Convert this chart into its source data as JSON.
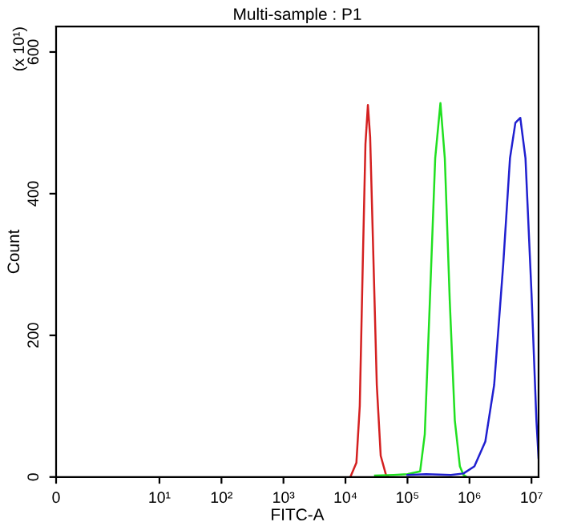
{
  "chart_data": {
    "type": "line",
    "title": "Multi-sample : P1",
    "xlabel": "FITC-A",
    "ylabel": "Count",
    "annotations": [
      "(x 10¹)"
    ],
    "log": "x",
    "grid": false,
    "marker": "none",
    "line_style": "solid",
    "xlim": [
      0,
      13000000
    ],
    "xticks": [
      0,
      {
        "value": 10,
        "label": "10¹"
      },
      {
        "value": 100,
        "label": "10²"
      },
      {
        "value": 1000,
        "label": "10³"
      },
      {
        "value": 10000,
        "label": "10⁴"
      },
      {
        "value": 100000,
        "label": "10⁵"
      },
      {
        "value": 1000000,
        "label": "10⁶"
      },
      {
        "value": 10000000,
        "label": "10⁷"
      }
    ],
    "ylim": [
      0,
      636
    ],
    "yticks": [
      0,
      200,
      400,
      600
    ],
    "series": [
      {
        "color": "#d42020",
        "x": [
          12000,
          15000,
          17000,
          19000,
          21000,
          23000,
          25000,
          28000,
          32000,
          37000,
          45000,
          50000
        ],
        "values": [
          0,
          20,
          100,
          300,
          470,
          525,
          480,
          320,
          130,
          30,
          3,
          0
        ]
      },
      {
        "color": "#20e020",
        "x": [
          30000,
          60000,
          100000,
          160000,
          190000,
          230000,
          280000,
          340000,
          400000,
          480000,
          580000,
          700000,
          800000,
          900000
        ],
        "values": [
          2,
          3,
          4,
          8,
          60,
          250,
          450,
          528,
          450,
          250,
          80,
          15,
          3,
          0
        ]
      },
      {
        "color": "#2020d0",
        "x": [
          100000,
          200000,
          500000,
          800000,
          1200000,
          1800000,
          2500000,
          3500000,
          4500000,
          5500000,
          6600000,
          8000000,
          10000000,
          12000000,
          13000000
        ],
        "values": [
          3,
          4,
          3,
          5,
          15,
          50,
          130,
          300,
          450,
          500,
          507,
          450,
          260,
          80,
          27
        ]
      }
    ]
  }
}
